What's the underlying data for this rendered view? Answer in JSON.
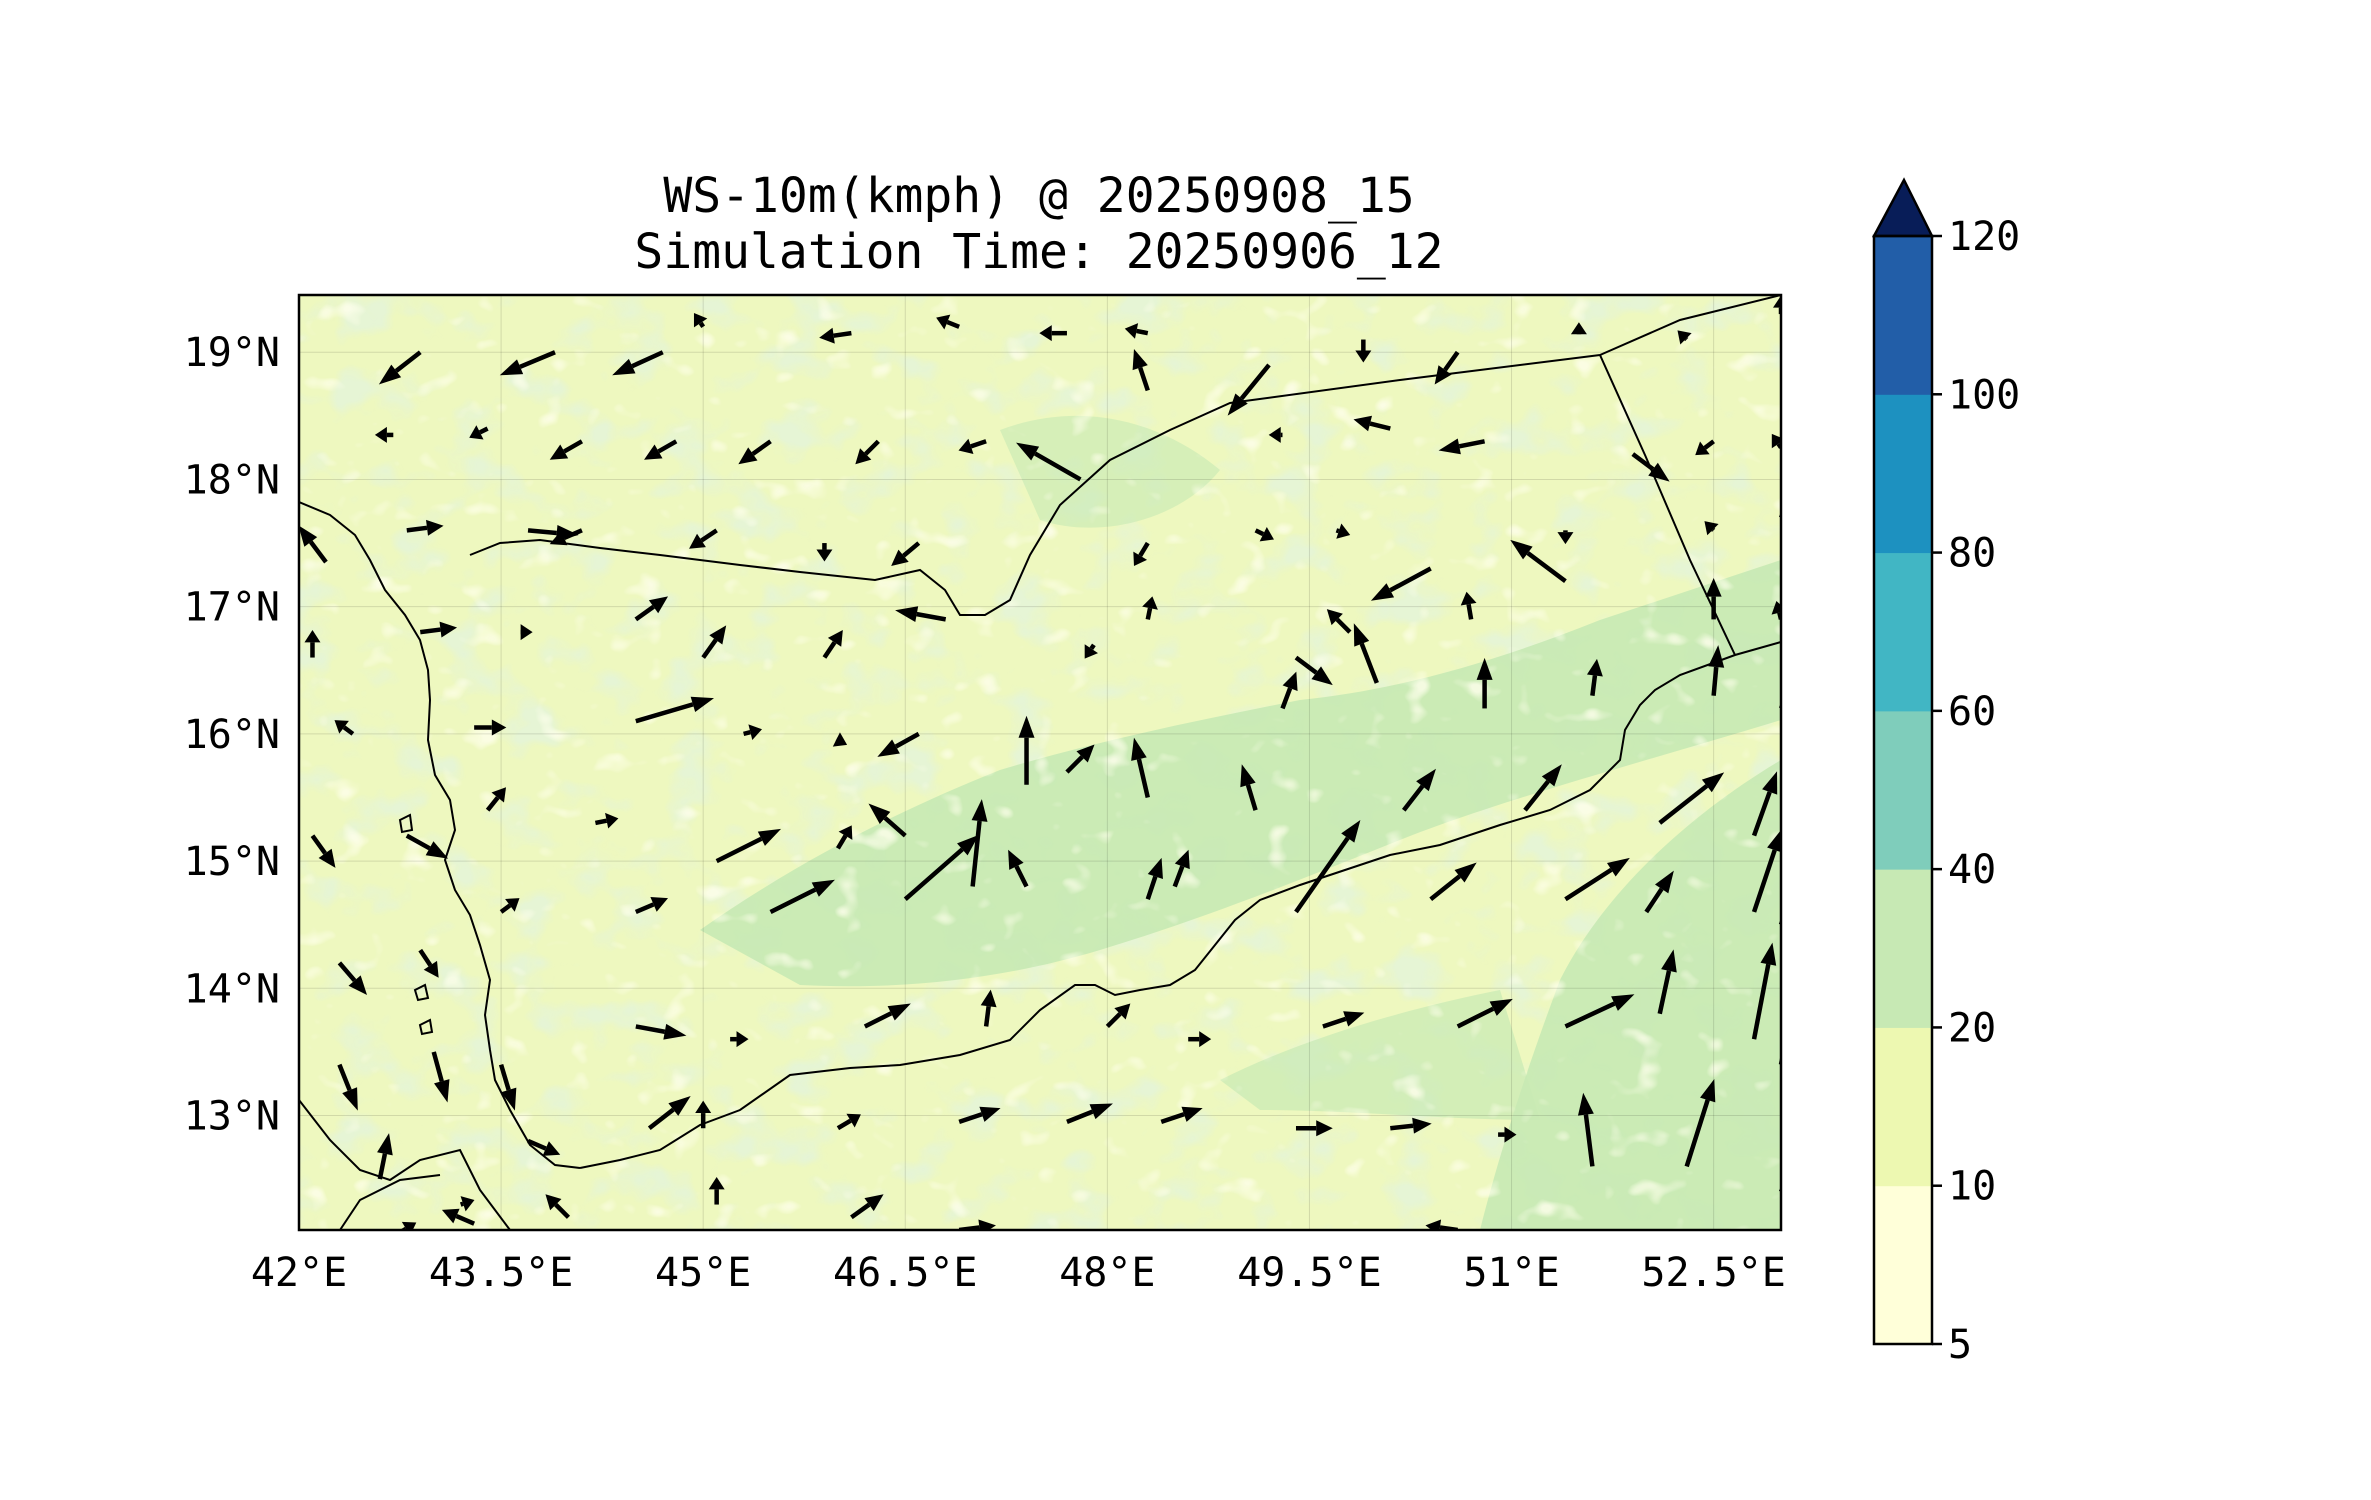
{
  "figure": {
    "title_line1": "WS-10m(kmph) @ 20250908_15",
    "title_line2": "Simulation Time: 20250906_12"
  },
  "map": {
    "lon_range": [
      42.0,
      53.0
    ],
    "lat_range": [
      12.1,
      19.45
    ],
    "lon_ticks": [
      {
        "value": 42.0,
        "label": "42°E"
      },
      {
        "value": 43.5,
        "label": "43.5°E"
      },
      {
        "value": 45.0,
        "label": "45°E"
      },
      {
        "value": 46.5,
        "label": "46.5°E"
      },
      {
        "value": 48.0,
        "label": "48°E"
      },
      {
        "value": 49.5,
        "label": "49.5°E"
      },
      {
        "value": 51.0,
        "label": "51°E"
      },
      {
        "value": 52.5,
        "label": "52.5°E"
      }
    ],
    "lat_ticks": [
      {
        "value": 19,
        "label": "19°N"
      },
      {
        "value": 18,
        "label": "18°N"
      },
      {
        "value": 17,
        "label": "17°N"
      },
      {
        "value": 16,
        "label": "16°N"
      },
      {
        "value": 15,
        "label": "15°N"
      },
      {
        "value": 14,
        "label": "14°N"
      },
      {
        "value": 13,
        "label": "13°N"
      }
    ],
    "grid": true,
    "background_fill": "#eef8bf",
    "coastline_color": "#000000"
  },
  "chart_data": {
    "type": "heatmap",
    "variable": "WS-10m(kmph)",
    "valid_time": "20250908_15",
    "simulation_time": "20250906_12",
    "colorbar": {
      "levels": [
        5,
        10,
        20,
        40,
        60,
        80,
        100,
        120
      ],
      "labels": [
        "5",
        "10",
        "20",
        "40",
        "60",
        "80",
        "100",
        "120"
      ],
      "colors": [
        "#ffffd9",
        "#edf8b1",
        "#c7e9b4",
        "#7fcdbb",
        "#41b6c4",
        "#1d91c0",
        "#225ea8",
        "#253494"
      ],
      "extend_color": "#081d58",
      "extend": "max"
    },
    "wind_vectors": [
      {
        "lon": 42.9,
        "lat": 19.0,
        "u": -9,
        "v": -7
      },
      {
        "lon": 43.9,
        "lat": 19.0,
        "u": -12,
        "v": -5
      },
      {
        "lon": 44.7,
        "lat": 19.0,
        "u": -11,
        "v": -5
      },
      {
        "lon": 45.0,
        "lat": 19.2,
        "u": -2,
        "v": 3
      },
      {
        "lon": 46.1,
        "lat": 19.15,
        "u": -7,
        "v": -1
      },
      {
        "lon": 46.9,
        "lat": 19.2,
        "u": -5,
        "v": 2
      },
      {
        "lon": 47.7,
        "lat": 19.15,
        "u": -6,
        "v": 0
      },
      {
        "lon": 48.3,
        "lat": 19.15,
        "u": -5,
        "v": 1
      },
      {
        "lon": 48.3,
        "lat": 18.7,
        "u": -3,
        "v": 9
      },
      {
        "lon": 49.2,
        "lat": 18.9,
        "u": -9,
        "v": -11
      },
      {
        "lon": 49.9,
        "lat": 19.1,
        "u": 0,
        "v": -5
      },
      {
        "lon": 50.6,
        "lat": 19.0,
        "u": -5,
        "v": -7
      },
      {
        "lon": 51.5,
        "lat": 19.2,
        "u": 0,
        "v": 1
      },
      {
        "lon": 52.3,
        "lat": 19.1,
        "u": -2,
        "v": 2
      },
      {
        "lon": 53.0,
        "lat": 19.3,
        "u": 0,
        "v": 4
      },
      {
        "lon": 42.7,
        "lat": 18.35,
        "u": -4,
        "v": 0
      },
      {
        "lon": 43.4,
        "lat": 18.4,
        "u": -4,
        "v": -2
      },
      {
        "lon": 44.1,
        "lat": 18.3,
        "u": -7,
        "v": -4
      },
      {
        "lon": 44.8,
        "lat": 18.3,
        "u": -7,
        "v": -4
      },
      {
        "lon": 45.5,
        "lat": 18.3,
        "u": -7,
        "v": -5
      },
      {
        "lon": 46.3,
        "lat": 18.3,
        "u": -5,
        "v": -5
      },
      {
        "lon": 47.1,
        "lat": 18.3,
        "u": -6,
        "v": -2
      },
      {
        "lon": 47.8,
        "lat": 18.0,
        "u": -14,
        "v": 8
      },
      {
        "lon": 49.3,
        "lat": 18.35,
        "u": -3,
        "v": 0
      },
      {
        "lon": 50.1,
        "lat": 18.4,
        "u": -8,
        "v": 2
      },
      {
        "lon": 50.8,
        "lat": 18.3,
        "u": -10,
        "v": -2
      },
      {
        "lon": 51.9,
        "lat": 18.2,
        "u": 8,
        "v": -6
      },
      {
        "lon": 52.5,
        "lat": 18.3,
        "u": -4,
        "v": -3
      },
      {
        "lon": 53.0,
        "lat": 18.25,
        "u": -2,
        "v": 3
      },
      {
        "lon": 53.0,
        "lat": 17.7,
        "u": 4,
        "v": 9
      },
      {
        "lon": 42.2,
        "lat": 17.35,
        "u": -6,
        "v": 8
      },
      {
        "lon": 42.8,
        "lat": 17.6,
        "u": 8,
        "v": 1
      },
      {
        "lon": 43.7,
        "lat": 17.6,
        "u": 11,
        "v": -1
      },
      {
        "lon": 44.1,
        "lat": 17.6,
        "u": -7,
        "v": -3
      },
      {
        "lon": 45.1,
        "lat": 17.6,
        "u": -6,
        "v": -4
      },
      {
        "lon": 45.9,
        "lat": 17.5,
        "u": 0,
        "v": -4
      },
      {
        "lon": 46.6,
        "lat": 17.5,
        "u": -6,
        "v": -5
      },
      {
        "lon": 48.3,
        "lat": 17.5,
        "u": -3,
        "v": -5
      },
      {
        "lon": 49.1,
        "lat": 17.6,
        "u": 4,
        "v": -2
      },
      {
        "lon": 49.7,
        "lat": 17.6,
        "u": 3,
        "v": -1
      },
      {
        "lon": 50.4,
        "lat": 17.3,
        "u": -13,
        "v": -7
      },
      {
        "lon": 51.4,
        "lat": 17.6,
        "u": 0,
        "v": -3
      },
      {
        "lon": 52.5,
        "lat": 17.6,
        "u": -2,
        "v": 2
      },
      {
        "lon": 52.5,
        "lat": 16.9,
        "u": 0,
        "v": 9
      },
      {
        "lon": 53.0,
        "lat": 16.9,
        "u": -1,
        "v": 4
      },
      {
        "lon": 42.1,
        "lat": 16.6,
        "u": 0,
        "v": 6
      },
      {
        "lon": 42.9,
        "lat": 16.8,
        "u": 8,
        "v": 1
      },
      {
        "lon": 43.7,
        "lat": 16.8,
        "u": 1,
        "v": 0
      },
      {
        "lon": 44.5,
        "lat": 16.9,
        "u": 7,
        "v": 5
      },
      {
        "lon": 45.0,
        "lat": 16.6,
        "u": 5,
        "v": 7
      },
      {
        "lon": 45.9,
        "lat": 16.6,
        "u": 4,
        "v": 6
      },
      {
        "lon": 46.8,
        "lat": 16.9,
        "u": -11,
        "v": 2
      },
      {
        "lon": 47.9,
        "lat": 16.7,
        "u": -2,
        "v": -3
      },
      {
        "lon": 48.3,
        "lat": 16.9,
        "u": 1,
        "v": 5
      },
      {
        "lon": 49.4,
        "lat": 16.6,
        "u": 8,
        "v": -6
      },
      {
        "lon": 49.8,
        "lat": 16.8,
        "u": -5,
        "v": 5
      },
      {
        "lon": 50.7,
        "lat": 16.9,
        "u": -1,
        "v": 6
      },
      {
        "lon": 51.4,
        "lat": 17.2,
        "u": -12,
        "v": 9
      },
      {
        "lon": 42.4,
        "lat": 16.0,
        "u": -4,
        "v": 3
      },
      {
        "lon": 43.3,
        "lat": 16.05,
        "u": 7,
        "v": 0
      },
      {
        "lon": 44.5,
        "lat": 16.1,
        "u": 17,
        "v": 5
      },
      {
        "lon": 45.3,
        "lat": 16.0,
        "u": 4,
        "v": 1
      },
      {
        "lon": 46.0,
        "lat": 15.95,
        "u": 2,
        "v": -1
      },
      {
        "lon": 46.6,
        "lat": 16.0,
        "u": -9,
        "v": -5
      },
      {
        "lon": 47.4,
        "lat": 15.6,
        "u": 0,
        "v": 15
      },
      {
        "lon": 47.7,
        "lat": 15.7,
        "u": 6,
        "v": 6
      },
      {
        "lon": 48.3,
        "lat": 15.5,
        "u": -3,
        "v": 13
      },
      {
        "lon": 49.1,
        "lat": 15.4,
        "u": -3,
        "v": 10
      },
      {
        "lon": 49.3,
        "lat": 16.2,
        "u": 3,
        "v": 8
      },
      {
        "lon": 50.0,
        "lat": 16.4,
        "u": -5,
        "v": 13
      },
      {
        "lon": 50.8,
        "lat": 16.2,
        "u": 0,
        "v": 11
      },
      {
        "lon": 51.6,
        "lat": 16.3,
        "u": 1,
        "v": 8
      },
      {
        "lon": 52.5,
        "lat": 16.3,
        "u": 1,
        "v": 11
      },
      {
        "lon": 53.0,
        "lat": 16.2,
        "u": 3,
        "v": 7
      },
      {
        "lon": 42.1,
        "lat": 15.2,
        "u": 5,
        "v": -7
      },
      {
        "lon": 42.8,
        "lat": 15.2,
        "u": 9,
        "v": -5
      },
      {
        "lon": 43.4,
        "lat": 15.4,
        "u": 4,
        "v": 5
      },
      {
        "lon": 44.2,
        "lat": 15.3,
        "u": 5,
        "v": 1
      },
      {
        "lon": 45.1,
        "lat": 15.0,
        "u": 14,
        "v": 7
      },
      {
        "lon": 46.0,
        "lat": 15.1,
        "u": 3,
        "v": 5
      },
      {
        "lon": 46.5,
        "lat": 15.2,
        "u": -8,
        "v": 7
      },
      {
        "lon": 47.0,
        "lat": 14.8,
        "u": 2,
        "v": 19
      },
      {
        "lon": 47.4,
        "lat": 14.8,
        "u": -4,
        "v": 8
      },
      {
        "lon": 48.5,
        "lat": 14.8,
        "u": 3,
        "v": 8
      },
      {
        "lon": 49.4,
        "lat": 14.6,
        "u": 14,
        "v": 20
      },
      {
        "lon": 50.2,
        "lat": 15.4,
        "u": 7,
        "v": 9
      },
      {
        "lon": 51.1,
        "lat": 15.4,
        "u": 8,
        "v": 10
      },
      {
        "lon": 52.1,
        "lat": 15.3,
        "u": 14,
        "v": 11
      },
      {
        "lon": 52.8,
        "lat": 15.2,
        "u": 5,
        "v": 14
      },
      {
        "lon": 53.0,
        "lat": 15.1,
        "u": 5,
        "v": 10
      },
      {
        "lon": 42.3,
        "lat": 14.2,
        "u": 6,
        "v": -7
      },
      {
        "lon": 42.9,
        "lat": 14.3,
        "u": 4,
        "v": -6
      },
      {
        "lon": 43.5,
        "lat": 14.6,
        "u": 4,
        "v": 3
      },
      {
        "lon": 44.5,
        "lat": 14.6,
        "u": 7,
        "v": 3
      },
      {
        "lon": 45.5,
        "lat": 14.6,
        "u": 14,
        "v": 7
      },
      {
        "lon": 46.5,
        "lat": 14.7,
        "u": 16,
        "v": 14
      },
      {
        "lon": 48.3,
        "lat": 14.7,
        "u": 3,
        "v": 9
      },
      {
        "lon": 50.4,
        "lat": 14.7,
        "u": 10,
        "v": 8
      },
      {
        "lon": 51.4,
        "lat": 14.7,
        "u": 14,
        "v": 9
      },
      {
        "lon": 52.0,
        "lat": 14.6,
        "u": 6,
        "v": 9
      },
      {
        "lon": 52.8,
        "lat": 14.6,
        "u": 6,
        "v": 18
      },
      {
        "lon": 53.0,
        "lat": 14.5,
        "u": 5,
        "v": 14
      },
      {
        "lon": 42.3,
        "lat": 13.4,
        "u": 4,
        "v": -10
      },
      {
        "lon": 43.0,
        "lat": 13.5,
        "u": 3,
        "v": -11
      },
      {
        "lon": 43.5,
        "lat": 13.4,
        "u": 3,
        "v": -10
      },
      {
        "lon": 44.5,
        "lat": 13.7,
        "u": 11,
        "v": -2
      },
      {
        "lon": 45.2,
        "lat": 13.6,
        "u": 4,
        "v": 0
      },
      {
        "lon": 46.2,
        "lat": 13.7,
        "u": 10,
        "v": 5
      },
      {
        "lon": 47.1,
        "lat": 13.7,
        "u": 1,
        "v": 8
      },
      {
        "lon": 48.0,
        "lat": 13.7,
        "u": 5,
        "v": 5
      },
      {
        "lon": 48.6,
        "lat": 13.6,
        "u": 5,
        "v": 0
      },
      {
        "lon": 49.6,
        "lat": 13.7,
        "u": 9,
        "v": 3
      },
      {
        "lon": 50.6,
        "lat": 13.7,
        "u": 12,
        "v": 6
      },
      {
        "lon": 51.4,
        "lat": 13.7,
        "u": 15,
        "v": 7
      },
      {
        "lon": 52.1,
        "lat": 13.8,
        "u": 3,
        "v": 14
      },
      {
        "lon": 52.8,
        "lat": 13.6,
        "u": 4,
        "v": 21
      },
      {
        "lon": 53.0,
        "lat": 13.4,
        "u": 4,
        "v": 20
      },
      {
        "lon": 42.6,
        "lat": 12.5,
        "u": 2,
        "v": 10
      },
      {
        "lon": 43.2,
        "lat": 12.3,
        "u": 3,
        "v": 1
      },
      {
        "lon": 43.7,
        "lat": 12.8,
        "u": 7,
        "v": -3
      },
      {
        "lon": 44.6,
        "lat": 12.9,
        "u": 9,
        "v": 7
      },
      {
        "lon": 45.0,
        "lat": 12.9,
        "u": 0,
        "v": 6
      },
      {
        "lon": 46.0,
        "lat": 12.9,
        "u": 5,
        "v": 3
      },
      {
        "lon": 46.9,
        "lat": 12.95,
        "u": 9,
        "v": 3
      },
      {
        "lon": 47.7,
        "lat": 12.95,
        "u": 10,
        "v": 4
      },
      {
        "lon": 48.4,
        "lat": 12.95,
        "u": 9,
        "v": 3
      },
      {
        "lon": 49.4,
        "lat": 12.9,
        "u": 8,
        "v": 0
      },
      {
        "lon": 50.1,
        "lat": 12.9,
        "u": 9,
        "v": 1
      },
      {
        "lon": 50.9,
        "lat": 12.85,
        "u": 4,
        "v": 0
      },
      {
        "lon": 51.6,
        "lat": 12.6,
        "u": -2,
        "v": 16
      },
      {
        "lon": 52.3,
        "lat": 12.6,
        "u": 6,
        "v": 19
      },
      {
        "lon": 53.0,
        "lat": 12.4,
        "u": 5,
        "v": 11
      },
      {
        "lon": 42.7,
        "lat": 12.05,
        "u": 5,
        "v": 3
      },
      {
        "lon": 43.3,
        "lat": 12.15,
        "u": -7,
        "v": 3
      },
      {
        "lon": 44.0,
        "lat": 12.2,
        "u": -5,
        "v": 5
      },
      {
        "lon": 45.1,
        "lat": 12.3,
        "u": 0,
        "v": 6
      },
      {
        "lon": 46.1,
        "lat": 12.2,
        "u": 7,
        "v": 5
      },
      {
        "lon": 46.9,
        "lat": 12.1,
        "u": 8,
        "v": 1
      },
      {
        "lon": 50.6,
        "lat": 12.1,
        "u": -7,
        "v": 1
      }
    ]
  }
}
